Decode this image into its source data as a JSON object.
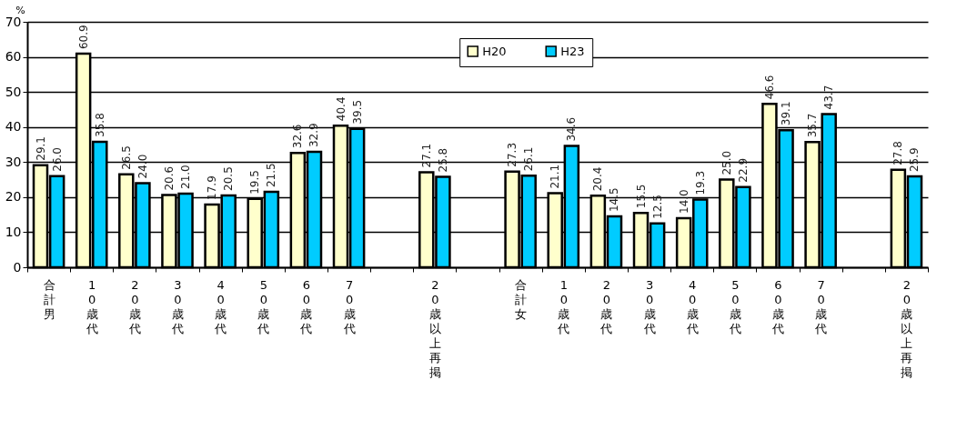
{
  "chart_data": {
    "type": "bar",
    "ylabel": "%",
    "categories": [
      "合計男",
      "10歳代",
      "20歳代",
      "30歳代",
      "40歳代",
      "50歳代",
      "60歳代",
      "70歳代",
      null,
      "20歳以上再掲",
      null,
      "合計女",
      "10歳代",
      "20歳代",
      "30歳代",
      "40歳代",
      "50歳代",
      "60歳代",
      "70歳代",
      null,
      "20歳以上再掲"
    ],
    "series": [
      {
        "name": "H20",
        "color": "#ffffcc",
        "values": [
          29.1,
          60.9,
          26.5,
          20.6,
          17.9,
          19.5,
          32.6,
          40.4,
          null,
          27.1,
          null,
          27.3,
          21.1,
          20.4,
          15.5,
          14.0,
          25.0,
          46.6,
          35.7,
          null,
          27.8
        ],
        "value_labels": [
          "29.1",
          "60.9",
          "26.5",
          "20.6",
          "17.9",
          "19.5",
          "32.6",
          "40.4",
          null,
          "27.1",
          null,
          "27.3",
          "21.1",
          "20.4",
          "15.5",
          "14.0",
          "25.0",
          "46.6",
          "35.7",
          null,
          "27.8"
        ]
      },
      {
        "name": "H23",
        "color": "#00ccff",
        "values": [
          26.0,
          35.8,
          24.0,
          21.0,
          20.5,
          21.5,
          32.9,
          39.5,
          null,
          25.8,
          null,
          26.1,
          34.6,
          14.5,
          12.5,
          19.3,
          22.9,
          39.1,
          43.7,
          null,
          25.9
        ],
        "value_labels": [
          "26.0",
          "35.8",
          "24.0",
          "21.0",
          "20.5",
          "21.5",
          "32.9",
          "39.5",
          null,
          "25.8",
          null,
          "26.1",
          "34.6",
          "14.5",
          "12.5",
          "19.3",
          "22.9",
          "39.1",
          "43.7",
          null,
          "25.9"
        ]
      }
    ],
    "ylim": [
      0,
      70
    ],
    "yticks": [
      0,
      10,
      20,
      30,
      40,
      50,
      60,
      70
    ],
    "grid": "y",
    "legend": "top"
  }
}
